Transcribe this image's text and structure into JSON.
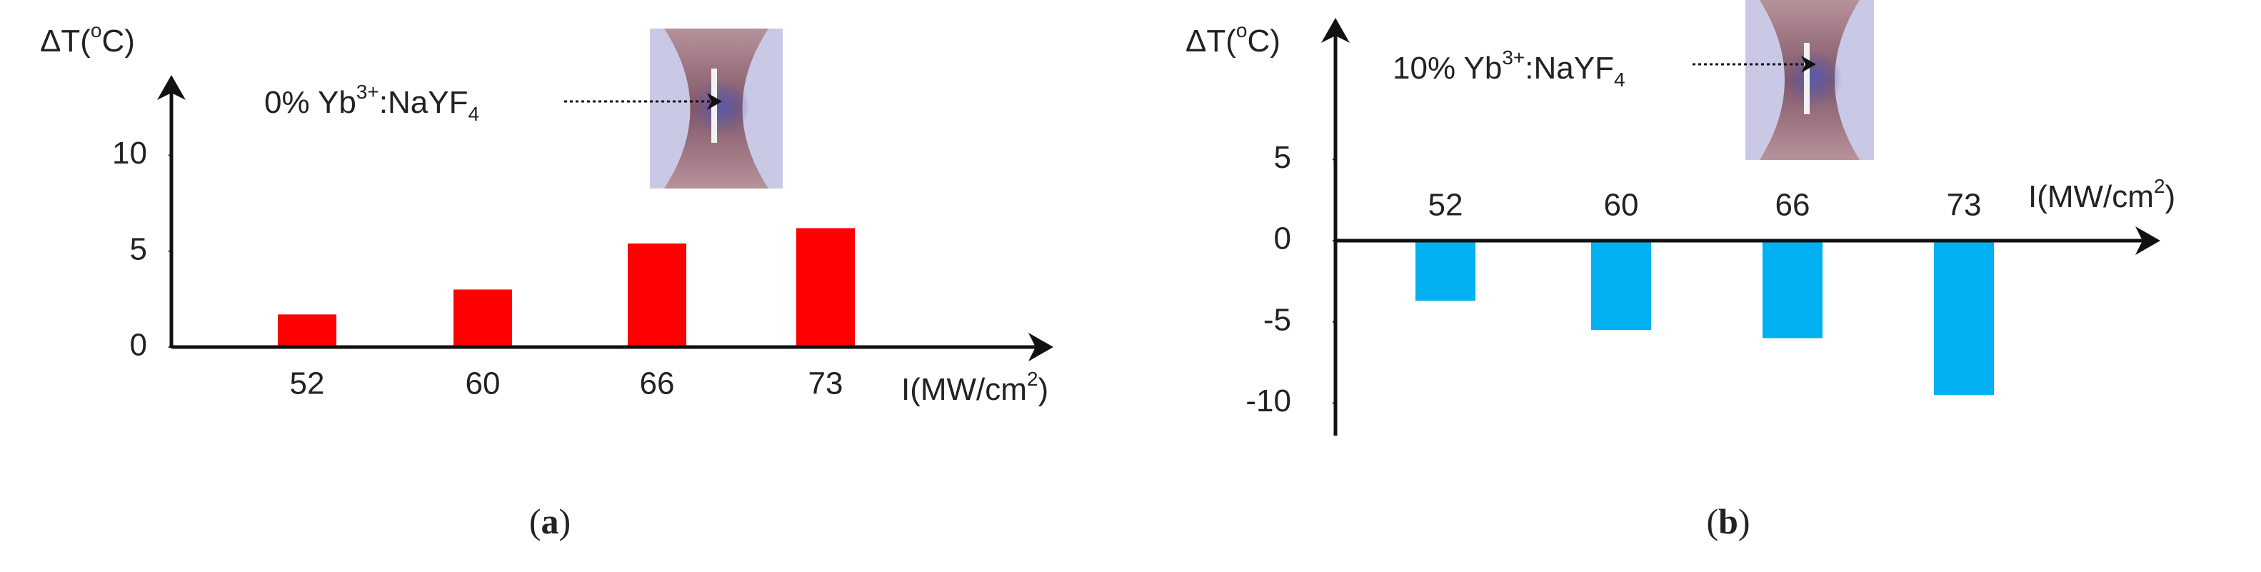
{
  "chart_data": [
    {
      "type": "bar",
      "ylabel": [
        "ΔT(",
        "o",
        "C)"
      ],
      "xlabel": [
        "I(MW/cm",
        "2",
        ")"
      ],
      "annotation": [
        "0% Yb",
        "3+",
        ":NaYF",
        "4"
      ],
      "categories": [
        "52",
        "60",
        "66",
        "73"
      ],
      "values": [
        1.7,
        3.0,
        5.4,
        6.2
      ],
      "color": "#ff0000",
      "ylim": [
        0,
        14
      ],
      "yticks": [
        0,
        5,
        10
      ],
      "grid": false,
      "panel_label": [
        "(",
        "a",
        ")"
      ]
    },
    {
      "type": "bar",
      "ylabel": [
        "ΔT(",
        "o",
        "C)"
      ],
      "xlabel": [
        "I(MW/cm",
        "2",
        ")"
      ],
      "annotation": [
        "10% Yb",
        "3+",
        ":NaYF",
        "4"
      ],
      "categories": [
        "52",
        "60",
        "66",
        "73"
      ],
      "values": [
        -3.7,
        -5.5,
        -6.0,
        -9.5
      ],
      "color": "#00b0f0",
      "ylim": [
        -12,
        13.5
      ],
      "yticks": [
        5,
        0,
        -5,
        -10
      ],
      "grid": false,
      "panel_label": [
        "(",
        "b",
        ")"
      ]
    }
  ]
}
